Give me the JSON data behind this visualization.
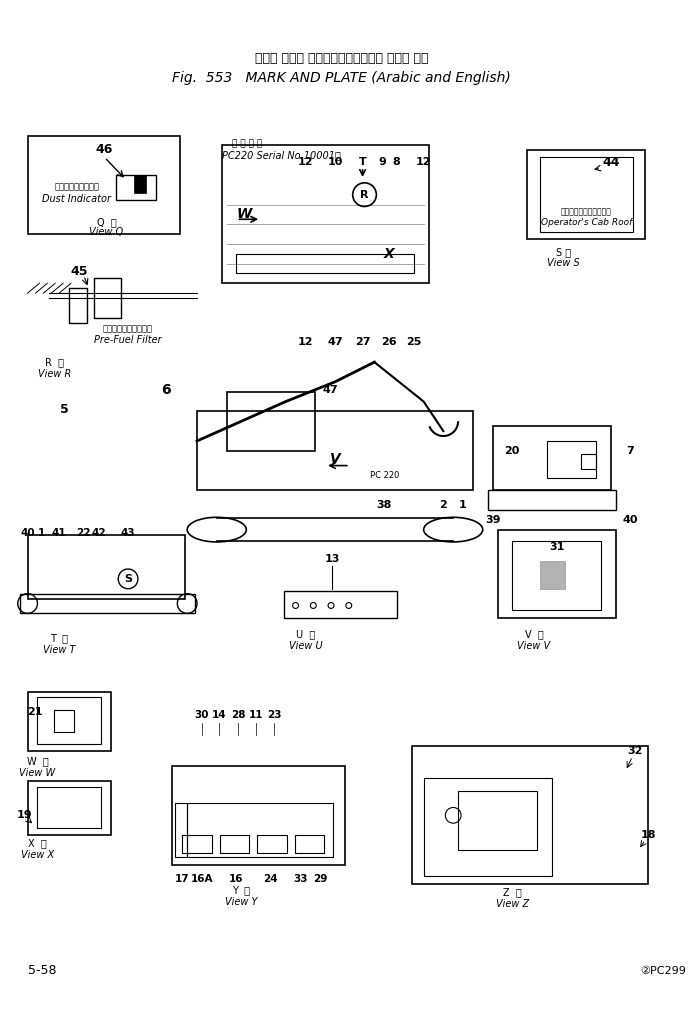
{
  "title_japanese": "マーク および プレート　アラビア語 および 英語",
  "title_english": "Fig.  553   MARK AND PLATE (Arabic and English)",
  "page_number": "5-58",
  "page_ref": "②PC299",
  "bg_color": "#ffffff",
  "text_color": "#000000",
  "fig_width": 6.94,
  "fig_height": 10.09,
  "dpi": 100
}
